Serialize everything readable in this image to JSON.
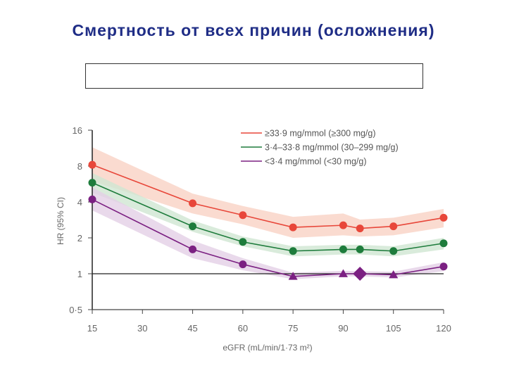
{
  "slide": {
    "title": "Смертность от всех причин (осложнения)"
  },
  "chart_data": {
    "type": "line",
    "xlabel": "eGFR (mL/min/1·73 m²)",
    "ylabel": "HR (95% CI)",
    "x_ticks": [
      15,
      30,
      45,
      60,
      75,
      90,
      105,
      120
    ],
    "x_tick_labels": [
      "15",
      "30",
      "45",
      "60",
      "75",
      "90",
      "105",
      "120"
    ],
    "xlim": [
      15,
      120
    ],
    "y_scale": "log2",
    "y_ticks": [
      0.5,
      1,
      2,
      4,
      8,
      16
    ],
    "y_tick_labels": [
      "0·5",
      "1",
      "2",
      "4",
      "8",
      "16"
    ],
    "ylim": [
      0.5,
      16
    ],
    "reference_line": 1,
    "grid": false,
    "legend_position": "top-right",
    "x": [
      15,
      45,
      60,
      75,
      90,
      95,
      105,
      120
    ],
    "series": [
      {
        "name": "≥33·9 mg/mmol (≥300 mg/g)",
        "color": "#e8473a",
        "band_color": "#f9d2c4",
        "values": [
          8.2,
          3.9,
          3.1,
          2.45,
          2.55,
          2.4,
          2.5,
          2.95
        ],
        "ci_lower": [
          6.0,
          3.2,
          2.6,
          2.0,
          2.1,
          2.05,
          2.1,
          2.45
        ],
        "ci_upper": [
          11.5,
          4.7,
          3.7,
          3.0,
          3.2,
          2.85,
          2.95,
          3.5
        ],
        "markers": [
          "circle",
          "circle",
          "circle",
          "circle",
          "circle",
          "circle",
          "circle",
          "circle"
        ]
      },
      {
        "name": "3·4–33·8 mg/mmol (30–299 mg/g)",
        "color": "#1e7c3c",
        "band_color": "#cfe6d2",
        "values": [
          5.8,
          2.5,
          1.85,
          1.55,
          1.6,
          1.6,
          1.55,
          1.8
        ],
        "ci_lower": [
          4.8,
          2.25,
          1.7,
          1.4,
          1.45,
          1.45,
          1.4,
          1.6
        ],
        "ci_upper": [
          7.0,
          2.8,
          2.05,
          1.7,
          1.75,
          1.75,
          1.7,
          2.0
        ],
        "markers": [
          "circle",
          "circle",
          "circle",
          "circle",
          "circle",
          "circle",
          "circle",
          "circle"
        ]
      },
      {
        "name": "<3·4 mg/mmol (<30 mg/g)",
        "color": "#7b2082",
        "band_color": "#e3cfe6",
        "values": [
          4.2,
          1.6,
          1.2,
          0.95,
          1.0,
          1.0,
          0.98,
          1.15
        ],
        "ci_lower": [
          3.4,
          1.35,
          1.07,
          0.9,
          0.95,
          0.95,
          0.93,
          1.05
        ],
        "ci_upper": [
          5.3,
          1.9,
          1.35,
          1.02,
          1.06,
          1.05,
          1.04,
          1.25
        ],
        "markers": [
          "circle",
          "circle",
          "circle",
          "triangle",
          "triangle",
          "diamond",
          "triangle",
          "circle"
        ]
      }
    ]
  }
}
